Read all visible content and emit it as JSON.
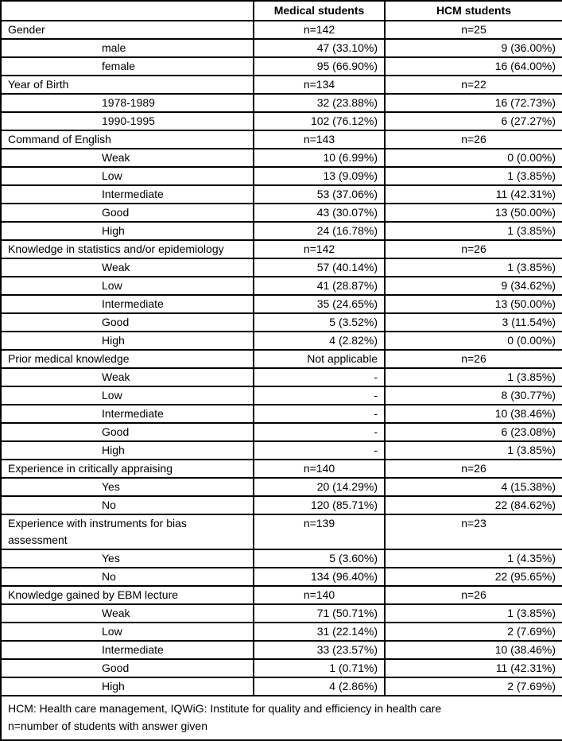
{
  "table": {
    "columns": {
      "label": "",
      "medical": "Medical students",
      "hcm": "HCM students"
    },
    "rows": [
      {
        "type": "group",
        "label": "Gender",
        "med": "n=142",
        "hcm": "n=25"
      },
      {
        "type": "item",
        "label": "male",
        "med": "47 (33.10%)",
        "hcm": "9 (36.00%)"
      },
      {
        "type": "item",
        "label": "female",
        "med": "95 (66.90%)",
        "hcm": "16 (64.00%)"
      },
      {
        "type": "group",
        "label": "Year of Birth",
        "med": "n=134",
        "hcm": "n=22"
      },
      {
        "type": "item",
        "label": "1978-1989",
        "med": "32 (23.88%)",
        "hcm": "16 (72.73%)"
      },
      {
        "type": "item",
        "label": "1990-1995",
        "med": "102 (76.12%)",
        "hcm": "6 (27.27%)"
      },
      {
        "type": "group",
        "label": "Command of English",
        "med": "n=143",
        "hcm": "n=26"
      },
      {
        "type": "item",
        "label": "Weak",
        "med": "10 (6.99%)",
        "hcm": "0 (0.00%)"
      },
      {
        "type": "item",
        "label": "Low",
        "med": "13 (9.09%)",
        "hcm": "1 (3.85%)"
      },
      {
        "type": "item",
        "label": "Intermediate",
        "med": "53 (37.06%)",
        "hcm": "11 (42.31%)"
      },
      {
        "type": "item",
        "label": "Good",
        "med": "43 (30.07%)",
        "hcm": "13 (50.00%)"
      },
      {
        "type": "item",
        "label": "High",
        "med": "24 (16.78%)",
        "hcm": "1 (3.85%)"
      },
      {
        "type": "group",
        "label": "Knowledge in statistics and/or epidemiology",
        "med": "n=142",
        "hcm": "n=26"
      },
      {
        "type": "item",
        "label": "Weak",
        "med": "57 (40.14%)",
        "hcm": "1 (3.85%)"
      },
      {
        "type": "item",
        "label": "Low",
        "med": "41 (28.87%)",
        "hcm": "9 (34.62%)"
      },
      {
        "type": "item",
        "label": "Intermediate",
        "med": "35 (24.65%)",
        "hcm": "13 (50.00%)"
      },
      {
        "type": "item",
        "label": "Good",
        "med": "5 (3.52%)",
        "hcm": "3 (11.54%)"
      },
      {
        "type": "item",
        "label": "High",
        "med": "4 (2.82%)",
        "hcm": "0 (0.00%)"
      },
      {
        "type": "group",
        "label": "Prior medical knowledge",
        "med": "Not applicable",
        "hcm": "n=26",
        "med_align": "right"
      },
      {
        "type": "item",
        "label": "Weak",
        "med": "-",
        "hcm": "1 (3.85%)"
      },
      {
        "type": "item",
        "label": "Low",
        "med": "-",
        "hcm": "8 (30.77%)"
      },
      {
        "type": "item",
        "label": "Intermediate",
        "med": "-",
        "hcm": "10 (38.46%)"
      },
      {
        "type": "item",
        "label": "Good",
        "med": "-",
        "hcm": "6 (23.08%)"
      },
      {
        "type": "item",
        "label": "High",
        "med": "-",
        "hcm": "1 (3.85%)"
      },
      {
        "type": "group",
        "label": "Experience in critically appraising",
        "med": "n=140",
        "hcm": "n=26"
      },
      {
        "type": "item",
        "label": "Yes",
        "med": "20 (14.29%)",
        "hcm": "4 (15.38%)"
      },
      {
        "type": "item",
        "label": "No",
        "med": "120 (85.71%)",
        "hcm": "22 (84.62%)"
      },
      {
        "type": "group",
        "label": "Experience with instruments for bias assessment",
        "med": "n=139",
        "hcm": "n=23"
      },
      {
        "type": "item",
        "label": "Yes",
        "med": "5 (3.60%)",
        "hcm": "1 (4.35%)"
      },
      {
        "type": "item",
        "label": "No",
        "med": "134 (96.40%)",
        "hcm": "22 (95.65%)"
      },
      {
        "type": "group",
        "label": "Knowledge gained by EBM lecture",
        "med": "n=140",
        "hcm": "n=26"
      },
      {
        "type": "item",
        "label": "Weak",
        "med": "71 (50.71%)",
        "hcm": "1 (3.85%)"
      },
      {
        "type": "item",
        "label": "Low",
        "med": "31 (22.14%)",
        "hcm": "2 (7.69%)"
      },
      {
        "type": "item",
        "label": "Intermediate",
        "med": "33 (23.57%)",
        "hcm": "10 (38.46%)"
      },
      {
        "type": "item",
        "label": "Good",
        "med": "1 (0.71%)",
        "hcm": "11 (42.31%)"
      },
      {
        "type": "item",
        "label": "High",
        "med": "4 (2.86%)",
        "hcm": "2 (7.69%)"
      }
    ],
    "footnotes": [
      "HCM: Health care management, IQWiG: Institute for quality and efficiency in health care",
      "n=number of students with answer given"
    ],
    "colors": {
      "border": "#000000",
      "text": "#000000",
      "background": "#ffffff"
    }
  }
}
